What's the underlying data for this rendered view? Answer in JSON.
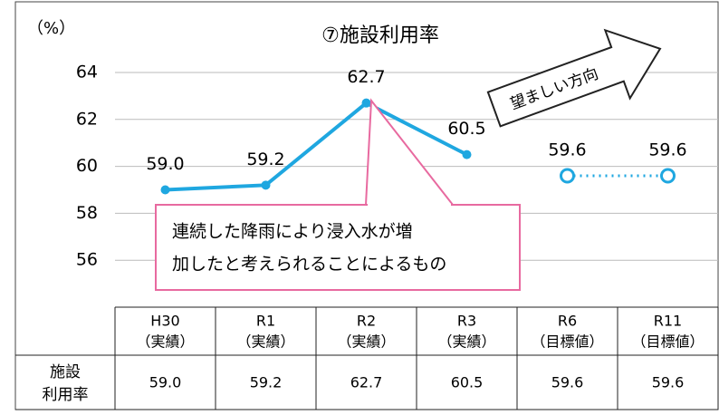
{
  "chart_data": {
    "type": "line",
    "title": "⑦施設利用率",
    "ylabel": "（%）",
    "categories": [
      "H30",
      "R1",
      "R2",
      "R3",
      "R6",
      "R11"
    ],
    "category_sublabels": [
      "（実績）",
      "（実績）",
      "（実績）",
      "（実績）",
      "（目標値）",
      "（目標値）"
    ],
    "series": [
      {
        "name": "実績",
        "color": "#1fa7e0",
        "style": "solid",
        "values": [
          59.0,
          59.2,
          62.7,
          60.5,
          null,
          null
        ],
        "value_labels": [
          "59.0",
          "59.2",
          "62.7",
          "60.5",
          null,
          null
        ]
      },
      {
        "name": "目標値",
        "color": "#1fa7e0",
        "style": "dotted",
        "values": [
          null,
          null,
          null,
          null,
          59.6,
          59.6
        ],
        "value_labels": [
          null,
          null,
          null,
          null,
          "59.6",
          "59.6"
        ]
      }
    ],
    "ylim": [
      54,
      64
    ],
    "yticks": [
      56,
      58,
      60,
      62,
      64
    ],
    "grid": true,
    "row_header": [
      "施設",
      "利用率"
    ],
    "annotations": {
      "callout": [
        "連続した降雨により浸入水が増",
        "加したと考えられることによるもの"
      ],
      "arrow": "望ましい方向"
    }
  }
}
